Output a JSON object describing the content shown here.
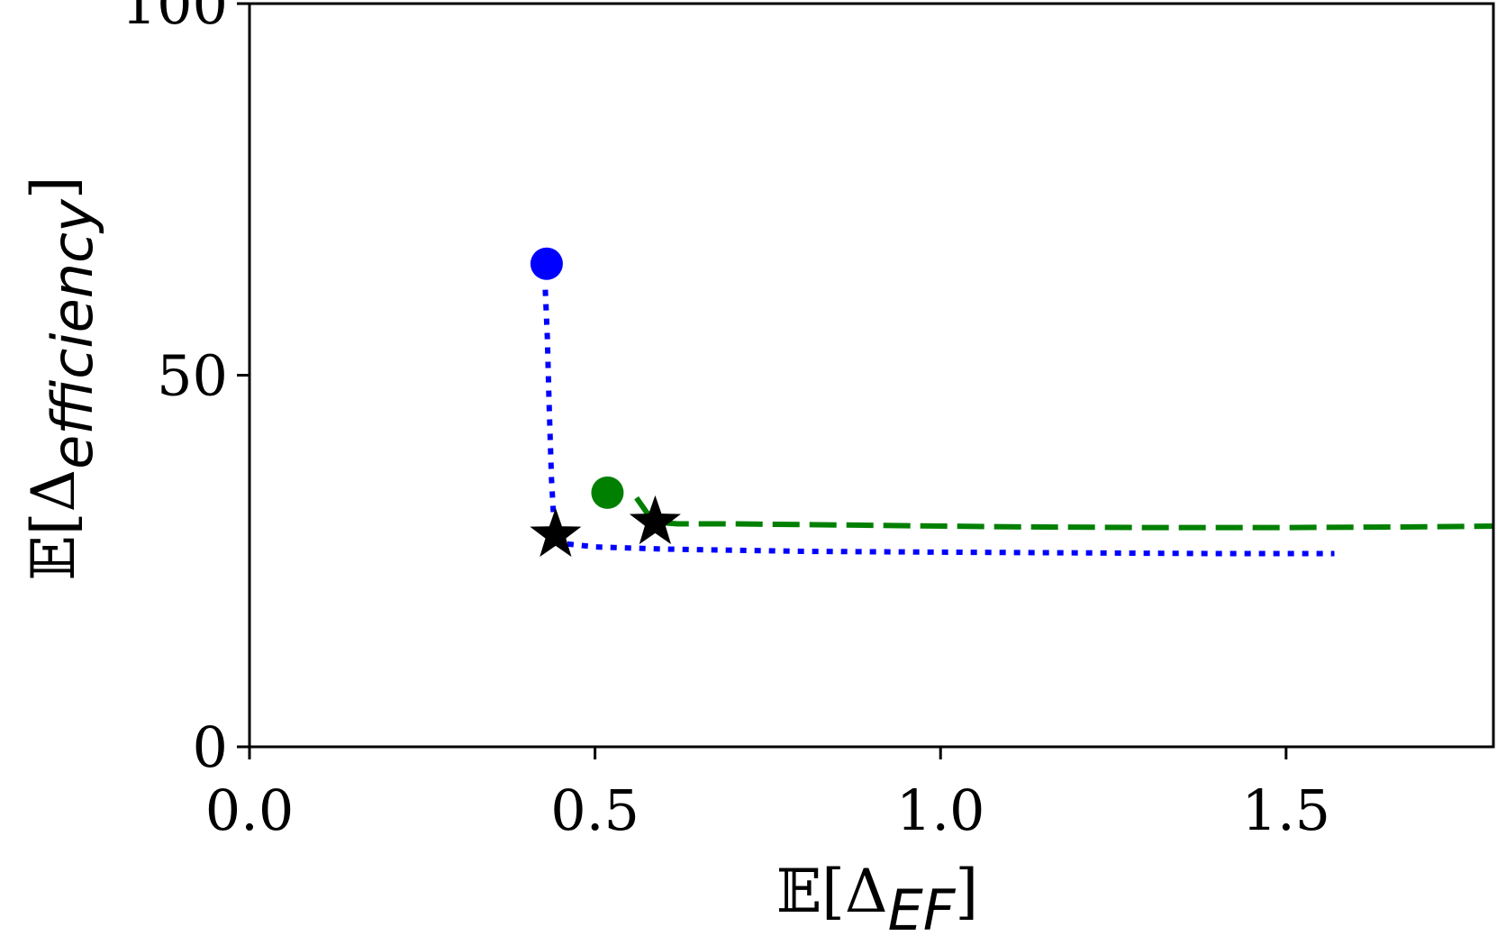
{
  "chart_data": {
    "type": "line",
    "title": "",
    "xlabel": {
      "prefix": "𝔼[Δ",
      "subscript": "EF",
      "suffix": "]"
    },
    "ylabel": {
      "prefix": "𝔼[Δ",
      "subscript": "efficiency",
      "suffix": "]"
    },
    "xlim": [
      0.0,
      1.8
    ],
    "ylim": [
      0,
      100
    ],
    "xticks": [
      0.0,
      0.5,
      1.0,
      1.5
    ],
    "xtick_labels": [
      "0.0",
      "0.5",
      "1.0",
      "1.5"
    ],
    "yticks": [
      0,
      50,
      100
    ],
    "ytick_labels": [
      "0",
      "50",
      "100"
    ],
    "grid": false,
    "legend": "none",
    "series": [
      {
        "color": "#0000ff",
        "linestyle": "dotted",
        "x": [
          0.428,
          0.431,
          0.433,
          0.435,
          0.437,
          0.44,
          0.445,
          0.46,
          0.5,
          0.6,
          0.8,
          1.0,
          1.2,
          1.4,
          1.57
        ],
        "y": [
          61.5,
          55,
          48,
          42,
          36,
          31,
          28.5,
          27.3,
          26.9,
          26.6,
          26.3,
          26.2,
          26.1,
          26.0,
          26.0
        ],
        "start_marker": {
          "x": 0.43,
          "y": 65.0,
          "shape": "circle"
        },
        "optimum_marker": {
          "x": 0.443,
          "y": 28.5,
          "shape": "star"
        }
      },
      {
        "color": "#008000",
        "linestyle": "dashed",
        "x": [
          0.56,
          0.575,
          0.59,
          0.62,
          0.7,
          0.9,
          1.1,
          1.3,
          1.5,
          1.7,
          1.8
        ],
        "y": [
          33.5,
          31.5,
          30.2,
          30.0,
          30.0,
          29.8,
          29.6,
          29.5,
          29.5,
          29.6,
          29.7
        ],
        "start_marker": {
          "x": 0.518,
          "y": 34.2,
          "shape": "circle"
        },
        "optimum_marker": {
          "x": 0.587,
          "y": 30.2,
          "shape": "star"
        }
      }
    ]
  }
}
